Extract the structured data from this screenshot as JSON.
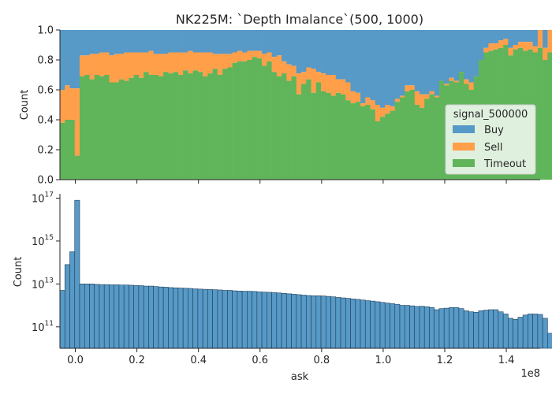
{
  "chart_data": [
    {
      "type": "area",
      "stacked": "fill",
      "title": "NK225M: `Depth Imalance`(500, 1000)",
      "xlabel": "",
      "ylabel": "Count",
      "xlim": [
        -5000000,
        151000000
      ],
      "ylim": [
        0,
        1.0
      ],
      "yticks": [
        "0.0",
        "0.2",
        "0.4",
        "0.6",
        "0.8",
        "1.0"
      ],
      "bin_start": -5000000,
      "bin_width": 1600000,
      "legend": {
        "title": "signal_500000",
        "position": "lower-right",
        "entries": [
          "Buy",
          "Sell",
          "Timeout"
        ]
      },
      "colors": {
        "Buy": "#5799c7",
        "Sell": "#ff9f4a",
        "Timeout": "#60b45a"
      },
      "series": [
        {
          "name": "Timeout",
          "values": [
            0.38,
            0.4,
            0.4,
            0.16,
            0.69,
            0.7,
            0.67,
            0.7,
            0.69,
            0.7,
            0.65,
            0.65,
            0.67,
            0.66,
            0.68,
            0.7,
            0.68,
            0.72,
            0.7,
            0.7,
            0.69,
            0.72,
            0.71,
            0.72,
            0.7,
            0.73,
            0.71,
            0.73,
            0.72,
            0.69,
            0.71,
            0.74,
            0.7,
            0.74,
            0.75,
            0.78,
            0.79,
            0.79,
            0.8,
            0.82,
            0.81,
            0.76,
            0.79,
            0.72,
            0.69,
            0.71,
            0.66,
            0.69,
            0.57,
            0.64,
            0.67,
            0.58,
            0.65,
            0.59,
            0.58,
            0.56,
            0.58,
            0.57,
            0.53,
            0.51,
            0.52,
            0.49,
            0.5,
            0.47,
            0.39,
            0.42,
            0.44,
            0.46,
            0.52,
            0.55,
            0.59,
            0.6,
            0.5,
            0.48,
            0.54,
            0.57,
            0.55,
            0.66,
            0.63,
            0.66,
            0.65,
            0.72,
            0.64,
            0.6,
            0.69,
            0.8,
            0.85,
            0.86,
            0.87,
            0.88,
            0.9,
            0.83,
            0.87,
            0.88,
            0.86,
            0.87,
            0.85,
            0.88,
            0.8,
            0.85,
            0.82
          ]
        },
        {
          "name": "Sell",
          "values": [
            0.22,
            0.23,
            0.21,
            0.45,
            0.14,
            0.13,
            0.17,
            0.14,
            0.16,
            0.15,
            0.18,
            0.19,
            0.17,
            0.19,
            0.17,
            0.15,
            0.17,
            0.13,
            0.16,
            0.14,
            0.15,
            0.12,
            0.14,
            0.13,
            0.15,
            0.12,
            0.15,
            0.12,
            0.13,
            0.16,
            0.14,
            0.1,
            0.14,
            0.1,
            0.09,
            0.07,
            0.07,
            0.06,
            0.06,
            0.04,
            0.05,
            0.08,
            0.06,
            0.1,
            0.14,
            0.08,
            0.11,
            0.07,
            0.14,
            0.08,
            0.08,
            0.16,
            0.07,
            0.12,
            0.12,
            0.14,
            0.09,
            0.1,
            0.12,
            0.08,
            0.06,
            0.02,
            0.05,
            0.06,
            0.11,
            0.06,
            0.06,
            0.03,
            0.02,
            0.01,
            0.04,
            0.03,
            0.09,
            0.09,
            0.03,
            0.02,
            0.01,
            0.0,
            0.01,
            0.02,
            0.01,
            0.0,
            0.03,
            0.05,
            0.0,
            0.0,
            0.03,
            0.05,
            0.04,
            0.05,
            0.04,
            0.05,
            0.03,
            0.04,
            0.06,
            0.05,
            0.04,
            0.12,
            0.08,
            0.15,
            0.1
          ]
        }
      ]
    },
    {
      "type": "bar",
      "title": "",
      "xlabel": "ask",
      "ylabel": "Count",
      "yscale": "log",
      "xlim": [
        -5000000,
        151000000
      ],
      "xticks": [
        "0.0",
        "0.2",
        "0.4",
        "0.6",
        "0.8",
        "1.0",
        "1.2",
        "1.4"
      ],
      "x_offset_label": "1e8",
      "yticks": [
        "10^11",
        "10^13",
        "10^15",
        "10^17"
      ],
      "ylim_log10": [
        10.0,
        17.2
      ],
      "bin_start": -5000000,
      "bin_width": 1600000,
      "color": "#5799c7",
      "log10_values": [
        12.7,
        13.9,
        14.5,
        16.9,
        13.0,
        13.0,
        13.0,
        12.98,
        12.97,
        12.97,
        12.96,
        12.96,
        12.95,
        12.95,
        12.94,
        12.93,
        12.92,
        12.9,
        12.9,
        12.88,
        12.86,
        12.85,
        12.83,
        12.82,
        12.81,
        12.8,
        12.79,
        12.77,
        12.76,
        12.75,
        12.74,
        12.73,
        12.72,
        12.7,
        12.7,
        12.68,
        12.67,
        12.66,
        12.66,
        12.65,
        12.63,
        12.62,
        12.61,
        12.6,
        12.58,
        12.56,
        12.54,
        12.52,
        12.5,
        12.48,
        12.46,
        12.45,
        12.45,
        12.44,
        12.42,
        12.4,
        12.37,
        12.35,
        12.33,
        12.3,
        12.28,
        12.25,
        12.22,
        12.2,
        12.17,
        12.14,
        12.11,
        12.08,
        12.05,
        12.0,
        12.0,
        11.98,
        11.95,
        11.96,
        11.94,
        11.9,
        11.8,
        11.85,
        11.87,
        11.9,
        11.9,
        11.85,
        11.75,
        11.7,
        11.68,
        11.75,
        11.78,
        11.8,
        11.8,
        11.7,
        11.6,
        11.4,
        11.35,
        11.45,
        11.55,
        11.6,
        11.6,
        11.58,
        11.4,
        10.7,
        10.2
      ]
    }
  ]
}
